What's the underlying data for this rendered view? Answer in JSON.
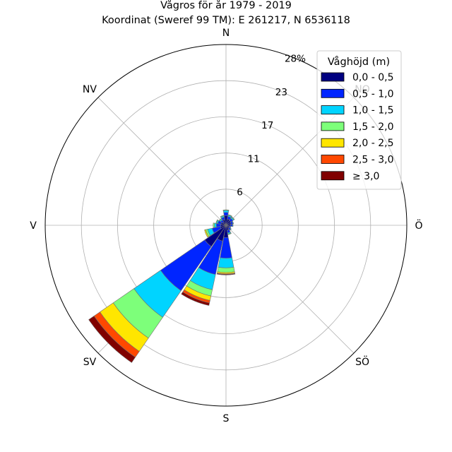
{
  "chart_data": {
    "type": "windrose",
    "title_line1": "Vågros för år 1979 - 2019",
    "title_line2": "Koordinat (Sweref 99 TM): E 261217, N 6536118",
    "directions": [
      "N",
      "NO",
      "Ö",
      "SÖ",
      "S",
      "SV",
      "V",
      "NV"
    ],
    "radial_ticks": [
      "6",
      "11",
      "17",
      "23",
      "28%"
    ],
    "radial_tick_values": [
      5.6,
      11.2,
      16.8,
      22.4,
      28
    ],
    "rmax": 28,
    "grid": true,
    "legend_placement": "top-right",
    "legend_title": "Våghöjd (m)",
    "bins": [
      "0,0 - 0,5",
      "0,5 - 1,0",
      "1,0 - 1,5",
      "1,5 - 2,0",
      "2,0 - 2,5",
      "2,5 - 3,0",
      "≥ 3,0"
    ],
    "colors": [
      "#000080",
      "#0025ff",
      "#00d4ff",
      "#7dff7a",
      "#ffe600",
      "#ff4800",
      "#800000"
    ],
    "sector_centers_deg": [
      0,
      22.5,
      45,
      67.5,
      90,
      112.5,
      135,
      157.5,
      180,
      202.5,
      225,
      247.5,
      270,
      292.5,
      315,
      337.5
    ],
    "values": [
      [
        1.5,
        0.5,
        0.3,
        0.1,
        0,
        0,
        0
      ],
      [
        1.0,
        0.4,
        0.2,
        0.1,
        0,
        0,
        0
      ],
      [
        0.9,
        0.4,
        0.2,
        0.1,
        0,
        0,
        0
      ],
      [
        0.8,
        0.3,
        0.1,
        0,
        0,
        0,
        0
      ],
      [
        0.7,
        0.3,
        0.1,
        0,
        0,
        0,
        0
      ],
      [
        0.5,
        0.2,
        0.1,
        0,
        0,
        0,
        0
      ],
      [
        0.6,
        0.3,
        0.1,
        0,
        0,
        0,
        0
      ],
      [
        0.8,
        0.4,
        0.2,
        0.1,
        0,
        0,
        0
      ],
      [
        1.9,
        3.2,
        1.5,
        0.7,
        0.2,
        0.1,
        0.1
      ],
      [
        2.5,
        5.3,
        2.4,
        1.0,
        0.7,
        0.4,
        0.4
      ],
      [
        4.0,
        8.3,
        5.0,
        3.9,
        2.5,
        1.1,
        1.0
      ],
      [
        0.9,
        1.3,
        0.7,
        0.3,
        0.2,
        0,
        0
      ],
      [
        0.8,
        0.7,
        0.3,
        0.2,
        0,
        0,
        0
      ],
      [
        0.8,
        0.5,
        0.2,
        0.1,
        0,
        0,
        0
      ],
      [
        0.6,
        0.4,
        0.2,
        0.1,
        0,
        0,
        0
      ],
      [
        0.9,
        0.4,
        0.2,
        0.1,
        0,
        0,
        0
      ]
    ]
  }
}
